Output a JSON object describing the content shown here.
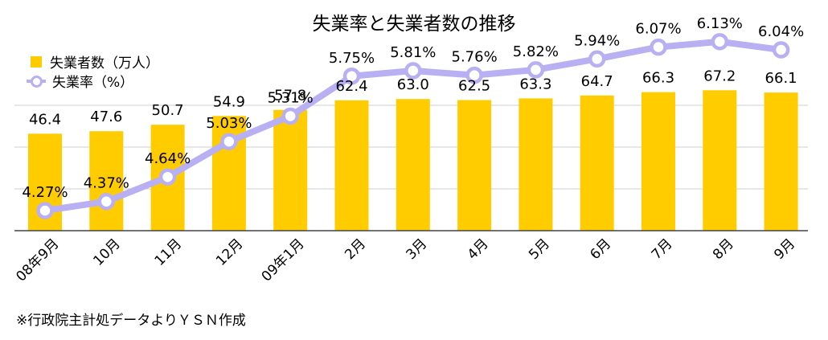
{
  "chart_data": {
    "type": "bar",
    "title": "失業率と失業者数の推移",
    "categories": [
      "08年9月",
      "10月",
      "11月",
      "12月",
      "09年1月",
      "2月",
      "3月",
      "4月",
      "5月",
      "6月",
      "7月",
      "8月",
      "9月"
    ],
    "series": [
      {
        "name": "失業者数（万人）",
        "type": "bar",
        "color": "#ffcc00",
        "values": [
          46.4,
          47.6,
          50.7,
          54.9,
          57.8,
          62.4,
          63.0,
          62.5,
          63.3,
          64.7,
          66.3,
          67.2,
          66.1
        ],
        "labels": [
          "46.4",
          "47.6",
          "50.7",
          "54.9",
          "57.8",
          "62.4",
          "63.0",
          "62.5",
          "63.3",
          "64.7",
          "66.3",
          "67.2",
          "66.1"
        ]
      },
      {
        "name": "失業率（%）",
        "type": "line",
        "color": "#b8b0f2",
        "values": [
          4.27,
          4.37,
          4.64,
          5.03,
          5.31,
          5.75,
          5.81,
          5.76,
          5.82,
          5.94,
          6.07,
          6.13,
          6.04
        ],
        "labels": [
          "4.27%",
          "4.37%",
          "4.64%",
          "5.03%",
          "5.31%",
          "5.75%",
          "5.81%",
          "5.76%",
          "5.82%",
          "5.94%",
          "6.07%",
          "6.13%",
          "6.04%"
        ]
      }
    ],
    "ylim": [
      0,
      70
    ],
    "ylim_secondary": [
      3.8,
      6.7
    ],
    "grid": true,
    "legend_position": "top-left"
  },
  "source_note": "※行政院主計処データよりＹＳＮ作成"
}
